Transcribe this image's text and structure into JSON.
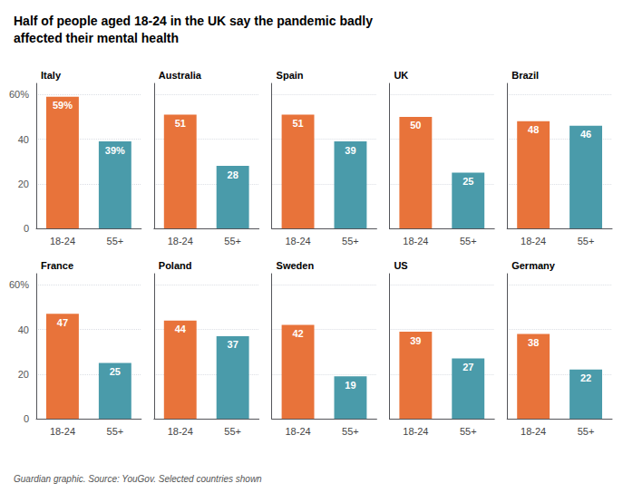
{
  "title": "Half of people aged 18-24 in the UK say the pandemic badly\naffected their mental health",
  "subtitle": "Guardian graphic. Source: YouGov. Selected countries shown",
  "chart_data": [
    {
      "type": "bar",
      "title": "Italy",
      "categories": [
        "18-24",
        "55+"
      ],
      "values": [
        59,
        39
      ],
      "value_labels": [
        "59%",
        "39%"
      ],
      "colors": [
        "#E8733A",
        "#4A9BAA"
      ],
      "ylim": [
        0,
        65
      ],
      "yticks": [
        0,
        20,
        40,
        {
          "value": 60,
          "label": "60%"
        }
      ],
      "grid": true,
      "data_labels": true
    },
    {
      "type": "bar",
      "title": "Australia",
      "categories": [
        "18-24",
        "55+"
      ],
      "values": [
        51,
        28
      ],
      "colors": [
        "#E8733A",
        "#4A9BAA"
      ],
      "ylim": [
        0,
        65
      ],
      "yticks": [
        0,
        20,
        40,
        {
          "value": 60,
          "label": "60%"
        }
      ],
      "grid": true,
      "data_labels": true,
      "tick_labels": "x"
    },
    {
      "type": "bar",
      "title": "Spain",
      "categories": [
        "18-24",
        "55+"
      ],
      "values": [
        51,
        39
      ],
      "colors": [
        "#E8733A",
        "#4A9BAA"
      ],
      "ylim": [
        0,
        65
      ],
      "yticks": [
        0,
        20,
        40,
        {
          "value": 60,
          "label": "60%"
        }
      ],
      "grid": true,
      "data_labels": true,
      "tick_labels": "x"
    },
    {
      "type": "bar",
      "title": "UK",
      "categories": [
        "18-24",
        "55+"
      ],
      "values": [
        50,
        25
      ],
      "colors": [
        "#E8733A",
        "#4A9BAA"
      ],
      "ylim": [
        0,
        65
      ],
      "yticks": [
        0,
        20,
        40,
        {
          "value": 60,
          "label": "60%"
        }
      ],
      "grid": true,
      "data_labels": true,
      "tick_labels": "x"
    },
    {
      "type": "bar",
      "title": "Brazil",
      "categories": [
        "18-24",
        "55+"
      ],
      "values": [
        48,
        46
      ],
      "colors": [
        "#E8733A",
        "#4A9BAA"
      ],
      "ylim": [
        0,
        65
      ],
      "yticks": [
        0,
        20,
        40,
        {
          "value": 60,
          "label": "60%"
        }
      ],
      "grid": true,
      "data_labels": true,
      "tick_labels": "x"
    },
    {
      "type": "bar",
      "title": "France",
      "categories": [
        "18-24",
        "55+"
      ],
      "values": [
        47,
        25
      ],
      "colors": [
        "#E8733A",
        "#4A9BAA"
      ],
      "ylim": [
        0,
        65
      ],
      "yticks": [
        0,
        20,
        40,
        {
          "value": 60,
          "label": "60%"
        }
      ],
      "grid": true,
      "data_labels": true
    },
    {
      "type": "bar",
      "title": "Poland",
      "categories": [
        "18-24",
        "55+"
      ],
      "values": [
        44,
        37
      ],
      "colors": [
        "#E8733A",
        "#4A9BAA"
      ],
      "ylim": [
        0,
        65
      ],
      "yticks": [
        0,
        20,
        40,
        {
          "value": 60,
          "label": "60%"
        }
      ],
      "grid": true,
      "data_labels": true,
      "tick_labels": "x"
    },
    {
      "type": "bar",
      "title": "Sweden",
      "categories": [
        "18-24",
        "55+"
      ],
      "values": [
        42,
        19
      ],
      "colors": [
        "#E8733A",
        "#4A9BAA"
      ],
      "ylim": [
        0,
        65
      ],
      "yticks": [
        0,
        20,
        40,
        {
          "value": 60,
          "label": "60%"
        }
      ],
      "grid": true,
      "data_labels": true,
      "tick_labels": "x"
    },
    {
      "type": "bar",
      "title": "US",
      "categories": [
        "18-24",
        "55+"
      ],
      "values": [
        39,
        27
      ],
      "colors": [
        "#E8733A",
        "#4A9BAA"
      ],
      "ylim": [
        0,
        65
      ],
      "yticks": [
        0,
        20,
        40,
        {
          "value": 60,
          "label": "60%"
        }
      ],
      "grid": true,
      "data_labels": true,
      "tick_labels": "x"
    },
    {
      "type": "bar",
      "title": "Germany",
      "categories": [
        "18-24",
        "55+"
      ],
      "values": [
        38,
        22
      ],
      "colors": [
        "#E8733A",
        "#4A9BAA"
      ],
      "ylim": [
        0,
        65
      ],
      "yticks": [
        0,
        20,
        40,
        {
          "value": 60,
          "label": "60%"
        }
      ],
      "grid": true,
      "data_labels": true,
      "tick_labels": "x"
    }
  ]
}
